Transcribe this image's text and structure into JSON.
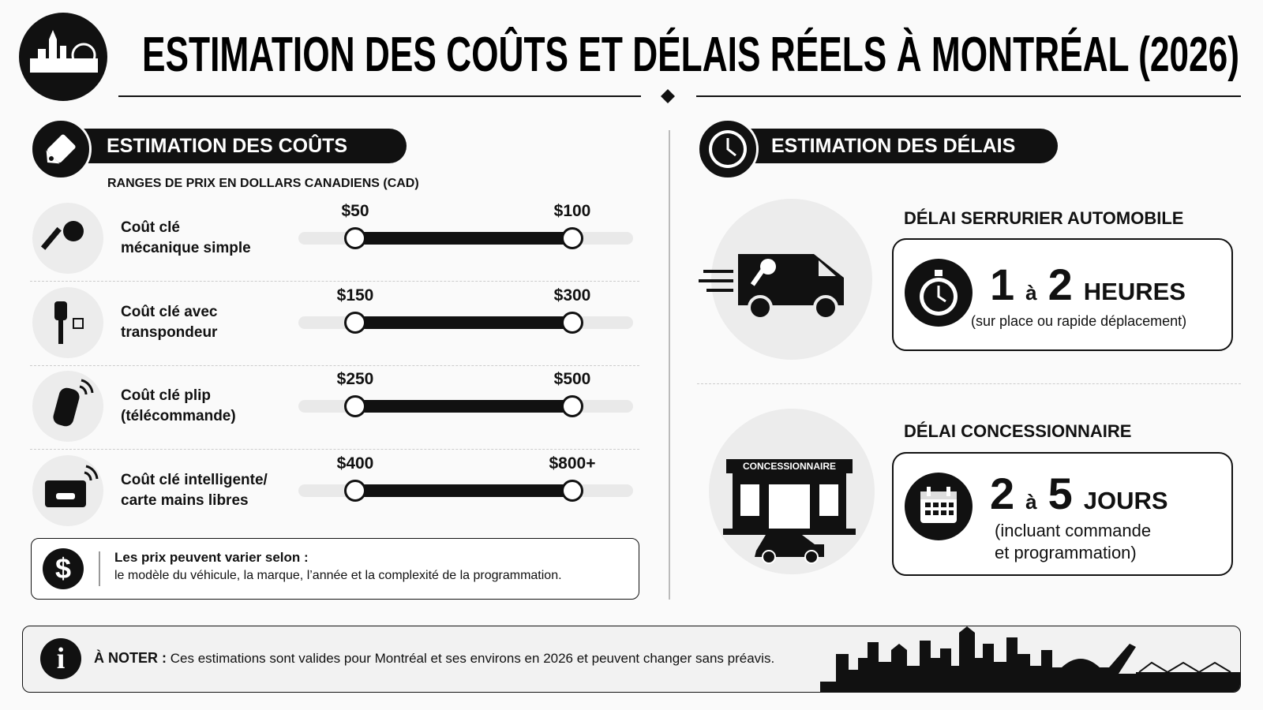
{
  "header": {
    "title": "ESTIMATION DES COÛTS ET DÉLAIS RÉELS À MONTRÉAL (2026)"
  },
  "costs": {
    "heading": "ESTIMATION DES COÛTS",
    "subheading": "RANGES DE PRIX EN DOLLARS CANADIENS (CAD)",
    "items": [
      {
        "label": [
          "Coût clé",
          "mécanique simple"
        ],
        "min": "$50",
        "max": "$100"
      },
      {
        "label": [
          "Coût clé avec",
          "transpondeur"
        ],
        "min": "$150",
        "max": "$300"
      },
      {
        "label": [
          "Coût clé plip",
          "(télécommande)"
        ],
        "min": "$250",
        "max": "$500"
      },
      {
        "label": [
          "Coût clé intelligente/",
          "carte mains libres"
        ],
        "min": "$400",
        "max": "$800+"
      }
    ],
    "note": {
      "title": "Les prix peuvent varier selon :",
      "text": "le modèle du véhicule, la marque, l’année et la complexité de la programmation."
    }
  },
  "delays": {
    "heading": "ESTIMATION DES DÉLAIS",
    "items": [
      {
        "title": "DÉLAI SERRURIER AUTOMOBILE",
        "from": "1",
        "connector": "à",
        "to": "2",
        "unit": "HEURES",
        "detail": [
          "(sur place ou rapide déplacement)"
        ]
      },
      {
        "title": "DÉLAI CONCESSIONNAIRE",
        "from": "2",
        "connector": "à",
        "to": "5",
        "unit": "JOURS",
        "detail": [
          "(incluant commande",
          "et programmation)"
        ]
      }
    ],
    "store_sign": "CONCESSIONNAIRE"
  },
  "footer": {
    "label": "À NOTER :",
    "text": "Ces estimations sont valides pour Montréal et ses environs en 2026 et peuvent changer sans préavis."
  }
}
